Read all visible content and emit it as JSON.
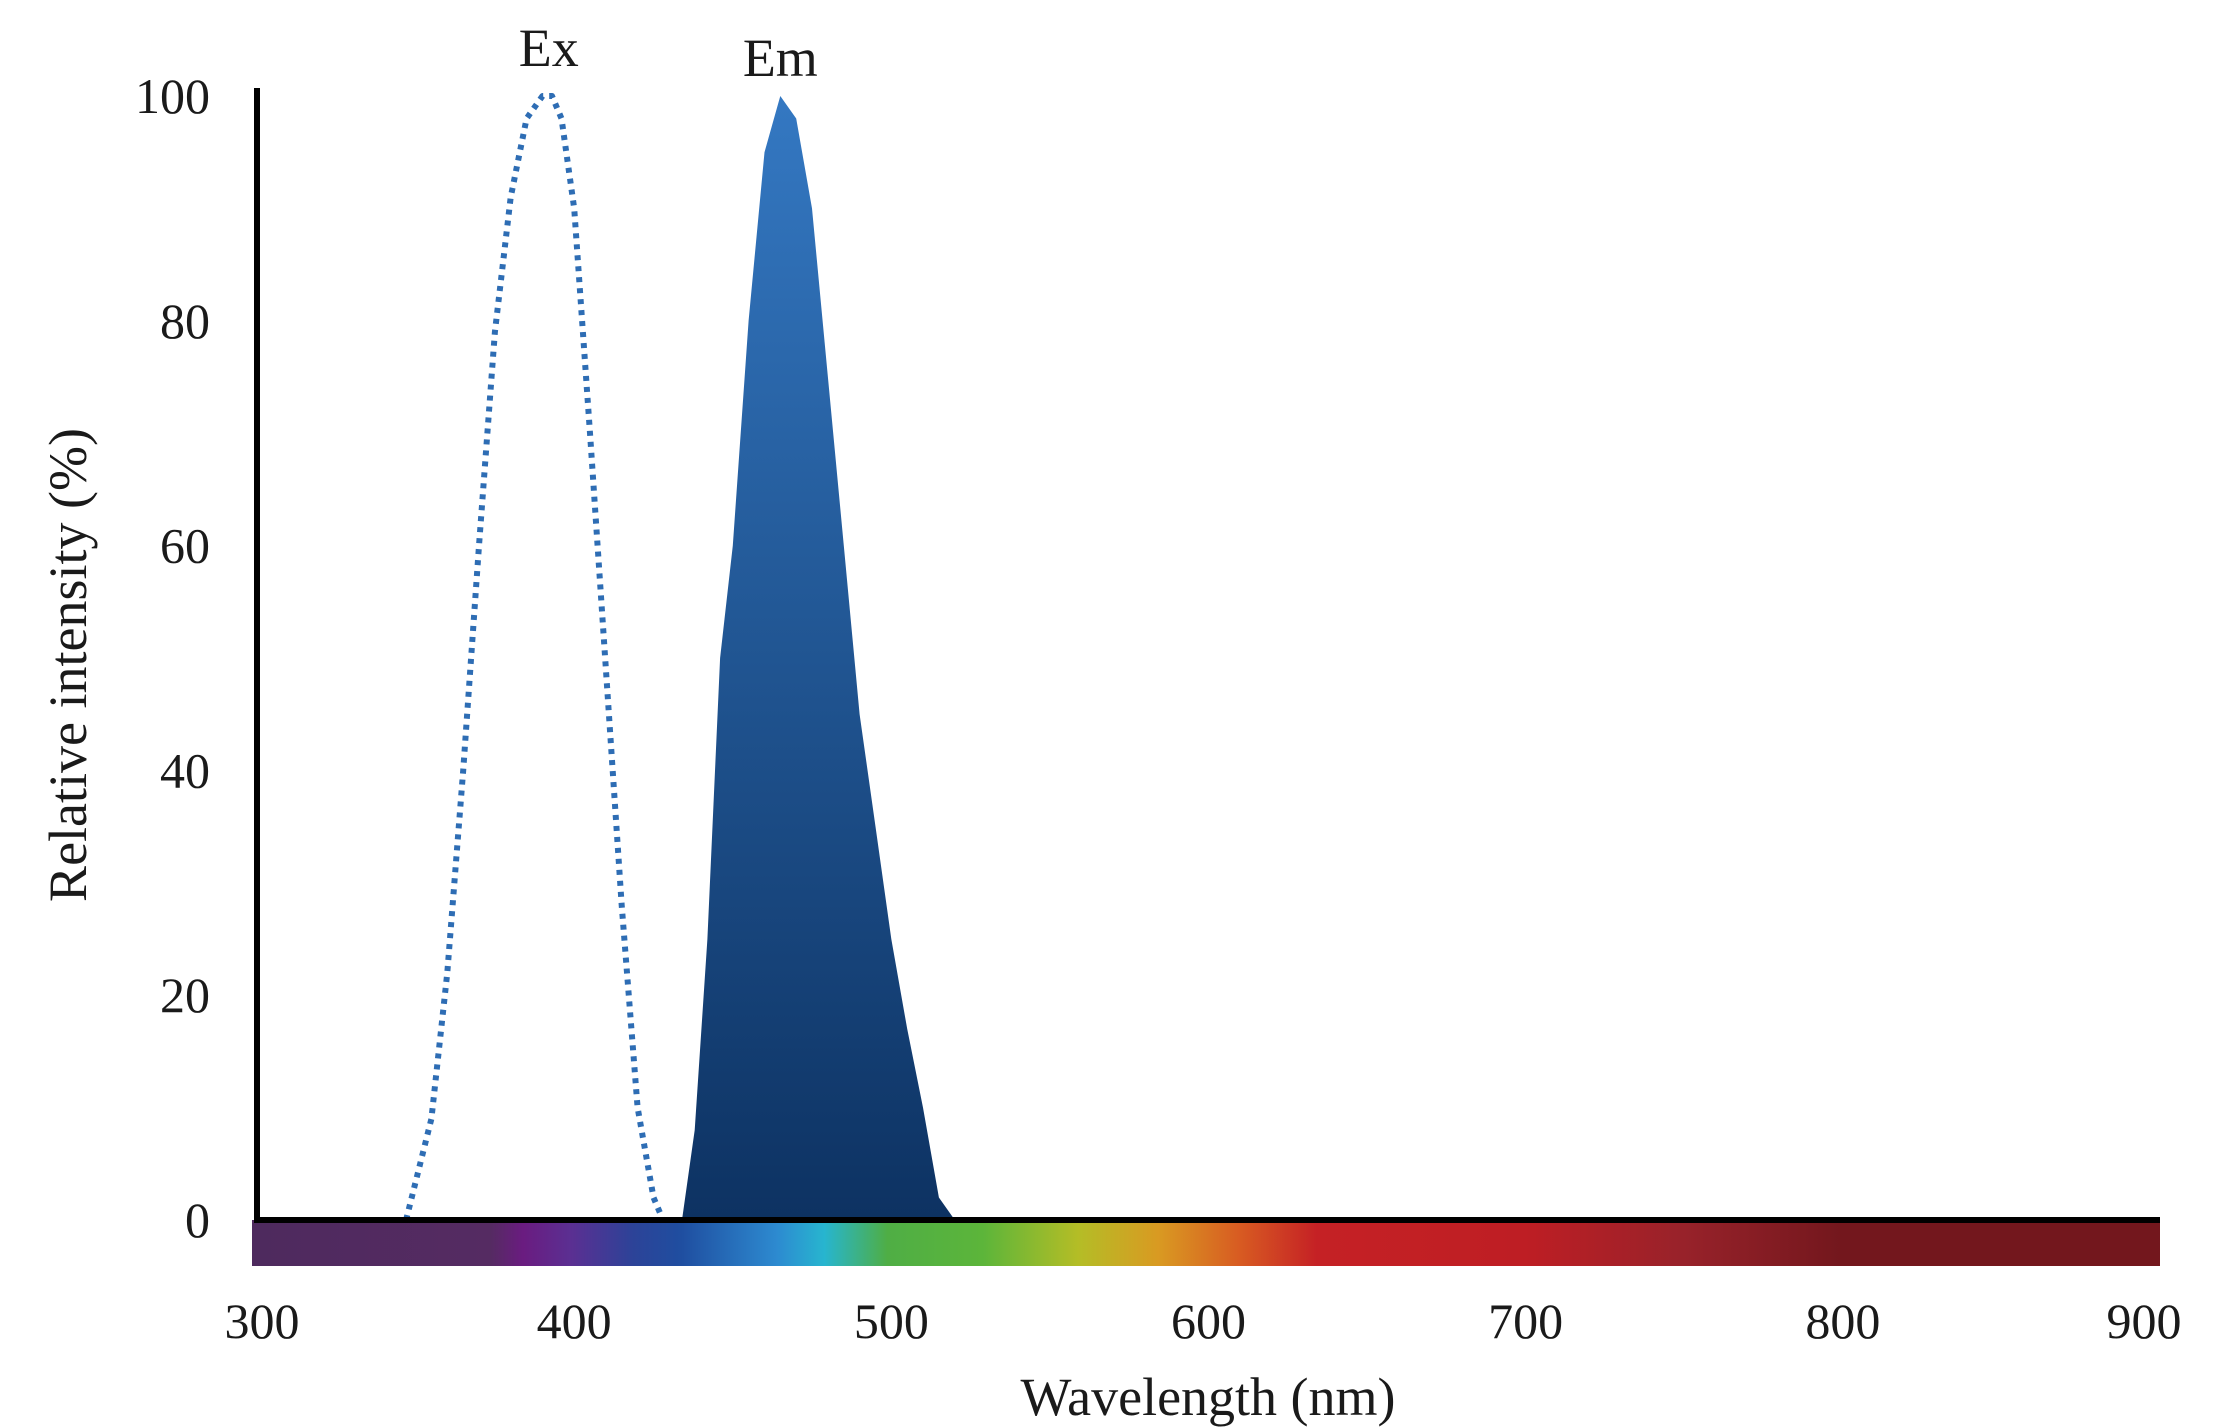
{
  "chart_data": {
    "type": "area",
    "xlabel": "Wavelength (nm)",
    "ylabel": "Relative intensity (%)",
    "xlim": [
      300,
      900
    ],
    "ylim": [
      0,
      100
    ],
    "x_ticks": [
      300,
      400,
      500,
      600,
      700,
      800,
      900
    ],
    "y_ticks": [
      0,
      20,
      40,
      60,
      80,
      100
    ],
    "grid": false,
    "legend": "none",
    "spectrum_bar": true,
    "colors": {
      "ex": "#2e6db4",
      "em_top": "#3277c0",
      "em_bottom": "#0e3566",
      "axis": "#000000"
    },
    "series": [
      {
        "name": "Ex",
        "style": "dotted-line",
        "x": [
          347,
          355,
          360,
          365,
          370,
          375,
          380,
          385,
          390,
          393,
          396,
          400,
          405,
          410,
          415,
          420,
          425,
          428
        ],
        "y": [
          0,
          9,
          22,
          40,
          60,
          79,
          91,
          98,
          100,
          100,
          98,
          90,
          70,
          49,
          28,
          10,
          2,
          0
        ]
      },
      {
        "name": "Em",
        "style": "filled-area",
        "x": [
          434,
          438,
          442,
          446,
          450,
          455,
          460,
          465,
          470,
          475,
          480,
          485,
          490,
          495,
          500,
          505,
          510,
          515,
          520,
          525
        ],
        "y": [
          0,
          8,
          25,
          50,
          60,
          80,
          95,
          100,
          98,
          90,
          75,
          60,
          45,
          35,
          25,
          17,
          10,
          2,
          0,
          0
        ]
      }
    ]
  }
}
